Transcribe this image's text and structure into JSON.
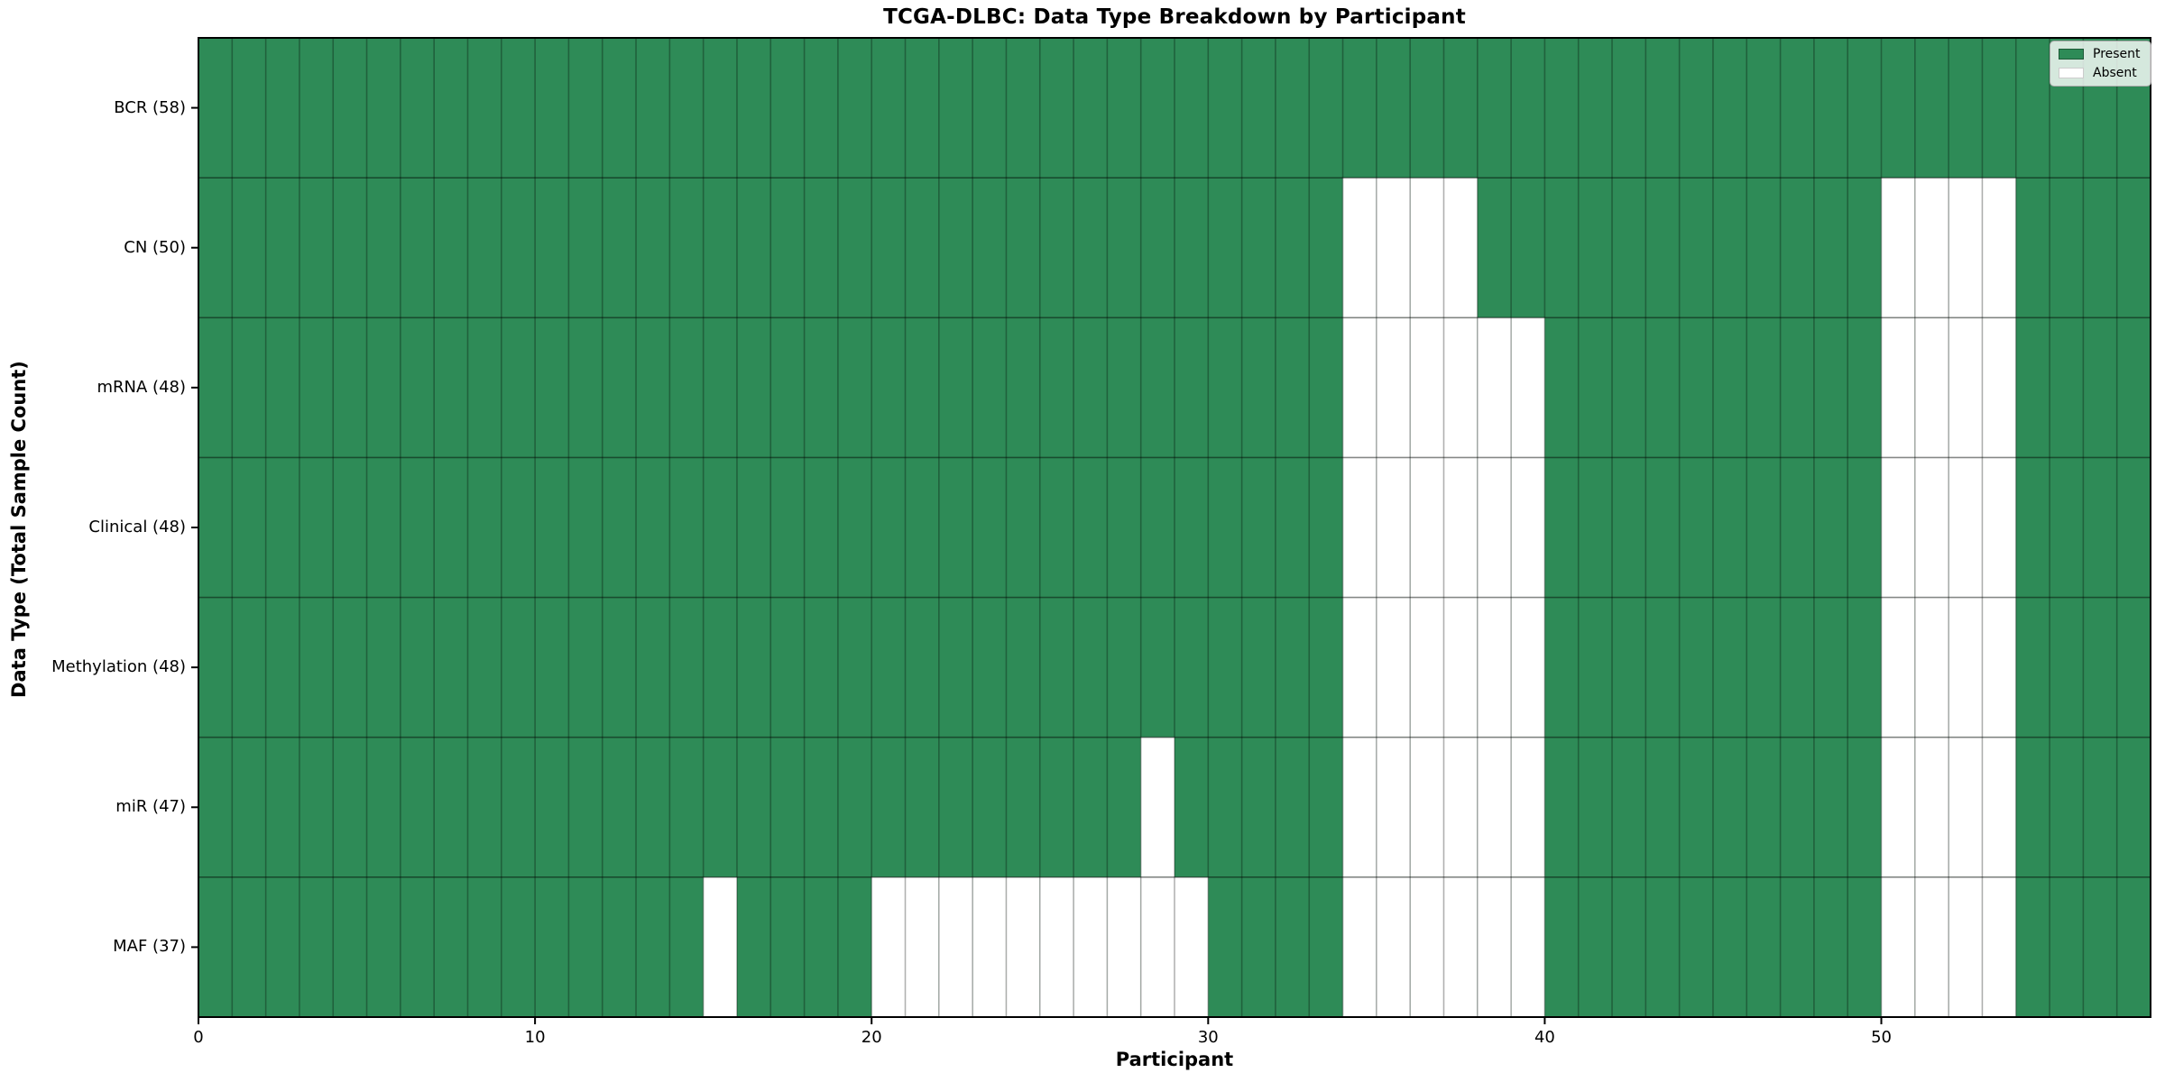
{
  "chart_data": {
    "type": "heatmap",
    "title": "TCGA-DLBC: Data Type Breakdown by Participant",
    "xlabel": "Participant",
    "ylabel": "Data Type (Total Sample Count)",
    "n_participants": 58,
    "x_range": [
      0,
      58
    ],
    "x_ticks": [
      0,
      10,
      20,
      30,
      40,
      50
    ],
    "grid": true,
    "colors": {
      "present": "#2E8B57",
      "absent": "#FFFFFF"
    },
    "legend": {
      "position": "upper right",
      "entries": [
        {
          "label": "Present",
          "color": "#2E8B57"
        },
        {
          "label": "Absent",
          "color": "#FFFFFF"
        }
      ]
    },
    "rows": [
      {
        "label": "BCR (58)",
        "data_type": "BCR",
        "total": 58,
        "absent_participants": []
      },
      {
        "label": "CN (50)",
        "data_type": "CN",
        "total": 50,
        "absent_participants": [
          34,
          35,
          36,
          37,
          50,
          51,
          52,
          53
        ]
      },
      {
        "label": "mRNA (48)",
        "data_type": "mRNA",
        "total": 48,
        "absent_participants": [
          34,
          35,
          36,
          37,
          38,
          39,
          50,
          51,
          52,
          53
        ]
      },
      {
        "label": "Clinical (48)",
        "data_type": "Clinical",
        "total": 48,
        "absent_participants": [
          34,
          35,
          36,
          37,
          38,
          39,
          50,
          51,
          52,
          53
        ]
      },
      {
        "label": "Methylation (48)",
        "data_type": "Methylation",
        "total": 48,
        "absent_participants": [
          34,
          35,
          36,
          37,
          38,
          39,
          50,
          51,
          52,
          53
        ]
      },
      {
        "label": "miR (47)",
        "data_type": "miR",
        "total": 47,
        "absent_participants": [
          28,
          34,
          35,
          36,
          37,
          38,
          39,
          50,
          51,
          52,
          53
        ]
      },
      {
        "label": "MAF (37)",
        "data_type": "MAF",
        "total": 37,
        "absent_participants": [
          15,
          20,
          21,
          22,
          23,
          24,
          25,
          26,
          27,
          28,
          29,
          34,
          35,
          36,
          37,
          38,
          39,
          50,
          51,
          52,
          53
        ]
      }
    ]
  }
}
